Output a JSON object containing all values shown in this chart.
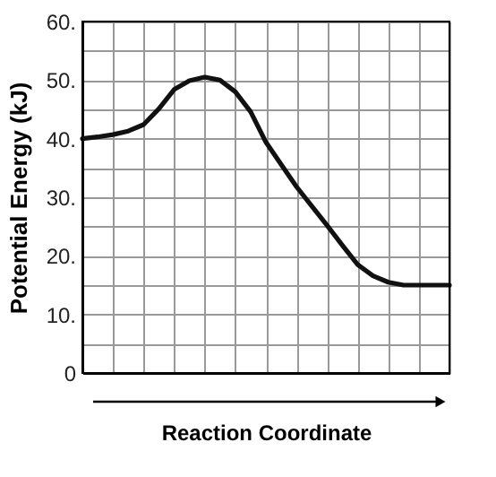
{
  "chart_data": {
    "type": "line",
    "xlabel": "Reaction Coordinate",
    "ylabel": "Potential Energy (kJ)",
    "categories": [
      null,
      null,
      null,
      null,
      null,
      null,
      null,
      null,
      null,
      null,
      null,
      null,
      null,
      null,
      null,
      null,
      null,
      null,
      null,
      null,
      null,
      null,
      null,
      null,
      null
    ],
    "series": [
      {
        "color": "#111111",
        "values": [
          40,
          40.3,
          40.7,
          41.3,
          42.4,
          45.1,
          48.4,
          49.9,
          50.5,
          50,
          48,
          44.6,
          39.4,
          35.6,
          31.8,
          28.5,
          25.2,
          21.8,
          18.5,
          16.6,
          15.5,
          15,
          15,
          15,
          15
        ]
      }
    ],
    "ylim": [
      0,
      60
    ],
    "yticks": [
      0,
      {
        "value": 5,
        "label": null
      },
      {
        "value": 10,
        "label": "10."
      },
      {
        "value": 15,
        "label": null
      },
      {
        "value": 20,
        "label": "20."
      },
      {
        "value": 25,
        "label": null
      },
      {
        "value": 30,
        "label": "30."
      },
      {
        "value": 35,
        "label": null
      },
      {
        "value": 40,
        "label": "40."
      },
      {
        "value": 45,
        "label": null
      },
      {
        "value": 50,
        "label": "50."
      },
      {
        "value": 55,
        "label": null
      },
      {
        "value": 60,
        "label": "60."
      }
    ],
    "grid": true,
    "line_style": "solid",
    "marker": "none"
  }
}
